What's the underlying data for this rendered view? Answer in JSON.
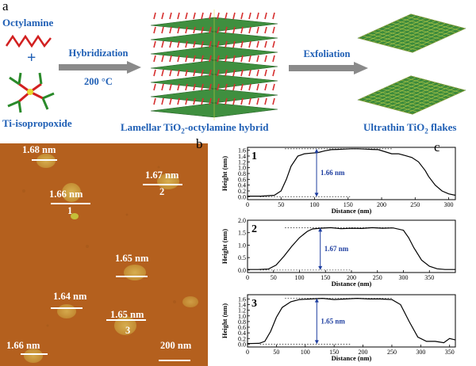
{
  "panel_a": {
    "letter": "a",
    "reactant_1": "Octylamine",
    "plus": "+",
    "reactant_2": "Ti-isopropoxide",
    "step_1": {
      "label": "Hybridization",
      "condition": "200 °C"
    },
    "intermediate_label": "Lamellar TiO2-octylamine hybrid",
    "step_2": {
      "label": "Exfoliation"
    },
    "product_label": "Ultrathin TiO2 flakes"
  },
  "panel_b": {
    "letter": "b",
    "flakes": [
      {
        "height": "1.68 nm",
        "number": ""
      },
      {
        "height": "1.67 nm",
        "number": "2"
      },
      {
        "height": "1.66 nm",
        "number": "1"
      },
      {
        "height": "1.65 nm",
        "number": ""
      },
      {
        "height": "1.64 nm",
        "number": ""
      },
      {
        "height": "1.65 nm",
        "number": "3"
      },
      {
        "height": "1.66 nm",
        "number": ""
      }
    ],
    "scale_bar": "200 nm"
  },
  "panel_c": {
    "letter": "c",
    "chart_data": [
      {
        "type": "line",
        "panel_number": "1",
        "xlabel": "Distance (nm)",
        "ylabel": "Height (nm)",
        "xlim": [
          0,
          310
        ],
        "ylim": [
          -0.1,
          1.7
        ],
        "xticks": [
          0,
          50,
          100,
          150,
          200,
          250,
          300
        ],
        "yticks": [
          0.0,
          0.2,
          0.4,
          0.6,
          0.8,
          1.0,
          1.2,
          1.4,
          1.6
        ],
        "x": [
          0,
          20,
          40,
          50,
          58,
          65,
          75,
          85,
          95,
          105,
          115,
          125,
          135,
          145,
          155,
          165,
          175,
          185,
          195,
          205,
          215,
          225,
          235,
          245,
          255,
          265,
          270,
          280,
          290,
          300,
          310
        ],
        "y": [
          0.02,
          0.02,
          0.05,
          0.2,
          0.6,
          1.05,
          1.4,
          1.48,
          1.5,
          1.52,
          1.58,
          1.62,
          1.63,
          1.64,
          1.65,
          1.65,
          1.64,
          1.63,
          1.62,
          1.55,
          1.48,
          1.48,
          1.42,
          1.35,
          1.2,
          0.9,
          0.7,
          0.4,
          0.2,
          0.1,
          0.05
        ],
        "annotation": "1.66 nm",
        "arrow_x": 103
      },
      {
        "type": "line",
        "panel_number": "2",
        "xlabel": "Distance (nm)",
        "ylabel": "Height (nm)",
        "xlim": [
          0,
          400
        ],
        "ylim": [
          -0.1,
          2.0
        ],
        "xticks": [
          0,
          50,
          100,
          150,
          200,
          250,
          300,
          350
        ],
        "yticks": [
          0.0,
          0.5,
          1.0,
          1.5,
          2.0
        ],
        "x": [
          0,
          20,
          40,
          55,
          70,
          85,
          100,
          115,
          125,
          140,
          160,
          180,
          200,
          220,
          240,
          260,
          280,
          300,
          310,
          320,
          335,
          350,
          365,
          380,
          400
        ],
        "y": [
          0.02,
          0.02,
          0.04,
          0.2,
          0.55,
          0.95,
          1.3,
          1.55,
          1.65,
          1.68,
          1.7,
          1.66,
          1.68,
          1.67,
          1.7,
          1.68,
          1.69,
          1.6,
          1.3,
          0.9,
          0.4,
          0.15,
          0.05,
          0.02,
          0.02
        ],
        "annotation": "1.67 nm",
        "arrow_x": 140
      },
      {
        "type": "line",
        "panel_number": "3",
        "xlabel": "Distance (nm)",
        "ylabel": "Height (nm)",
        "xlim": [
          0,
          360
        ],
        "ylim": [
          -0.1,
          1.75
        ],
        "xticks": [
          0,
          50,
          100,
          150,
          200,
          250,
          300,
          350
        ],
        "yticks": [
          0.0,
          0.2,
          0.4,
          0.6,
          0.8,
          1.0,
          1.2,
          1.4,
          1.6
        ],
        "x": [
          0,
          20,
          30,
          40,
          50,
          60,
          75,
          90,
          110,
          130,
          150,
          170,
          190,
          210,
          230,
          250,
          265,
          280,
          295,
          310,
          325,
          340,
          350,
          360
        ],
        "y": [
          0.02,
          0.03,
          0.1,
          0.45,
          0.95,
          1.3,
          1.5,
          1.58,
          1.6,
          1.62,
          1.58,
          1.6,
          1.62,
          1.6,
          1.6,
          1.58,
          1.4,
          0.8,
          0.25,
          0.1,
          0.1,
          0.05,
          0.2,
          0.15
        ],
        "annotation": "1.65 nm",
        "arrow_x": 120
      }
    ]
  },
  "colors": {
    "label_blue": "#1f5fb5",
    "arrow_grey": "#8a8a8a",
    "afm_background": "#b4601e",
    "curve": "#000000"
  }
}
